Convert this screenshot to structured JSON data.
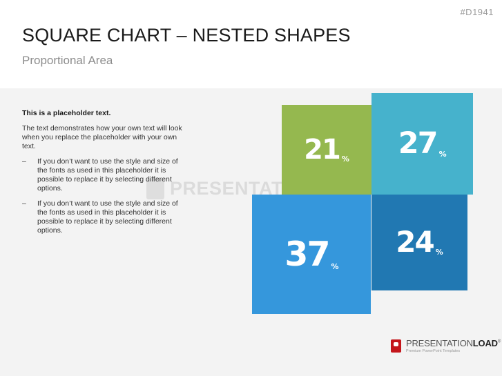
{
  "slide": {
    "id": "#D1941",
    "title": "SQUARE CHART – NESTED SHAPES",
    "subtitle": "Proportional Area"
  },
  "text_block": {
    "heading": "This is a placeholder text.",
    "paragraph": "The text demonstrates how your own text will look when you replace the placeholder with your own text.",
    "bullets": [
      {
        "dash": "–",
        "text": "If you don’t want to use the style and size of the fonts as used in this placeholder it is possible to replace it by selecting different options."
      },
      {
        "dash": "–",
        "text": "If you don’t want to use the style and size of the fonts as used in this placeholder it is possible to replace it by selecting different options."
      }
    ]
  },
  "watermark": {
    "text": "PRESENTATIONLOAD",
    "icon": "presentationload-logo-icon"
  },
  "footer": {
    "brand_light": "PRESENTATION",
    "brand_bold": "LOAD",
    "trademark": "®",
    "tagline": "Premium PowerPoint Templates",
    "icon": "presentationload-logo-icon"
  },
  "chart_data": {
    "type": "proportional-area",
    "title": "SQUARE CHART – NESTED SHAPES",
    "subtitle": "Proportional Area",
    "unit": "%",
    "items": [
      {
        "value": 21,
        "color": "#95b84f",
        "quadrant": "top-left"
      },
      {
        "value": 27,
        "color": "#46b2cc",
        "quadrant": "top-right"
      },
      {
        "value": 37,
        "color": "#3597dc",
        "quadrant": "bottom-left"
      },
      {
        "value": 24,
        "color": "#2178b2",
        "quadrant": "bottom-right"
      }
    ]
  }
}
